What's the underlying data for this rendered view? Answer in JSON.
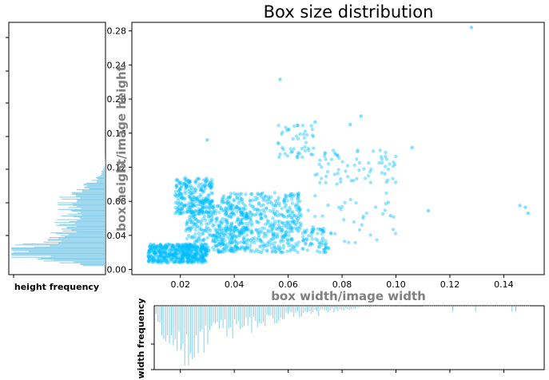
{
  "chart_data": [
    {
      "name": "main-scatter",
      "type": "scatter",
      "title": "Box size distribution",
      "xlabel": "box width/image width",
      "ylabel": "box height/image height",
      "xlim": [
        0.002,
        0.155
      ],
      "ylim": [
        -0.006,
        0.29
      ],
      "xticks": [
        "0.02",
        "0.04",
        "0.06",
        "0.08",
        "0.10",
        "0.12",
        "0.14"
      ],
      "yticks": [
        "0.00",
        "0.04",
        "0.08",
        "0.12",
        "0.16",
        "0.20",
        "0.24",
        "0.28"
      ],
      "color": "#00BFFF",
      "clusters": [
        {
          "x": [
            0.008,
            0.03
          ],
          "y": [
            0.008,
            0.03
          ],
          "n": 520
        },
        {
          "x": [
            0.018,
            0.032
          ],
          "y": [
            0.065,
            0.108
          ],
          "n": 260
        },
        {
          "x": [
            0.022,
            0.045
          ],
          "y": [
            0.02,
            0.075
          ],
          "n": 300
        },
        {
          "x": [
            0.035,
            0.065
          ],
          "y": [
            0.05,
            0.09
          ],
          "n": 260
        },
        {
          "x": [
            0.032,
            0.075
          ],
          "y": [
            0.02,
            0.05
          ],
          "n": 320
        },
        {
          "x": [
            0.055,
            0.07
          ],
          "y": [
            0.13,
            0.17
          ],
          "n": 50
        },
        {
          "x": [
            0.07,
            0.1
          ],
          "y": [
            0.1,
            0.14
          ],
          "n": 70
        },
        {
          "x": [
            0.06,
            0.1
          ],
          "y": [
            0.03,
            0.09
          ],
          "n": 40
        }
      ],
      "outliers": [
        {
          "x": 0.128,
          "y": 0.284
        },
        {
          "x": 0.057,
          "y": 0.223
        },
        {
          "x": 0.03,
          "y": 0.152
        },
        {
          "x": 0.07,
          "y": 0.173
        },
        {
          "x": 0.083,
          "y": 0.17
        },
        {
          "x": 0.087,
          "y": 0.18
        },
        {
          "x": 0.112,
          "y": 0.069
        },
        {
          "x": 0.106,
          "y": 0.143
        },
        {
          "x": 0.146,
          "y": 0.075
        },
        {
          "x": 0.148,
          "y": 0.073
        },
        {
          "x": 0.149,
          "y": 0.066
        },
        {
          "x": 0.098,
          "y": 0.063
        },
        {
          "x": 0.05,
          "y": 0.02
        }
      ]
    },
    {
      "name": "height-histogram",
      "type": "bar",
      "orientation": "horizontal",
      "xlabel": "height frequency",
      "color": "#87CEEB",
      "peak_y": 0.02,
      "range_y": [
        0.005,
        0.17
      ]
    },
    {
      "name": "width-histogram",
      "type": "bar",
      "orientation": "vertical",
      "ylabel": "width frequency",
      "color": "#87CEEB",
      "peak_x": 0.02,
      "range_x": [
        0.008,
        0.15
      ]
    }
  ]
}
